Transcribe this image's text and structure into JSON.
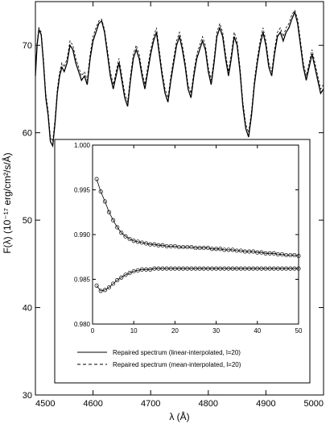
{
  "chart_data": [
    {
      "type": "line",
      "xlabel": "λ (Å)",
      "ylabel": "F(λ) (10⁻¹⁷ erg/cm²/s/Å)",
      "xlim": [
        4500,
        5000
      ],
      "ylim": [
        30,
        75
      ],
      "x_ticks": [
        "4500",
        "4600",
        "4700",
        "4800",
        "4900",
        "5000"
      ],
      "y_ticks": [
        "30",
        "40",
        "50",
        "60",
        "70"
      ],
      "grid": false,
      "series": [
        {
          "name": "Repaired spectrum (linear-interpolated, l=20)",
          "style": "solid",
          "x": [
            4500,
            4503,
            4506,
            4510,
            4514,
            4518,
            4522,
            4526,
            4530,
            4534,
            4538,
            4542,
            4546,
            4550,
            4555,
            4560,
            4565,
            4570,
            4575,
            4580,
            4585,
            4590,
            4595,
            4600,
            4605,
            4610,
            4615,
            4620,
            4625,
            4630,
            4635,
            4640,
            4645,
            4650,
            4655,
            4660,
            4665,
            4670,
            4675,
            4680,
            4685,
            4690,
            4695,
            4700,
            4705,
            4710,
            4715,
            4720,
            4725,
            4730,
            4735,
            4740,
            4745,
            4750,
            4755,
            4760,
            4765,
            4770,
            4775,
            4780,
            4785,
            4790,
            4795,
            4800,
            4805,
            4810,
            4815,
            4820,
            4825,
            4830,
            4835,
            4840,
            4845,
            4850,
            4855,
            4860,
            4865,
            4870,
            4875,
            4880,
            4885,
            4890,
            4895,
            4900,
            4905,
            4910,
            4915,
            4920,
            4925,
            4930,
            4935,
            4940,
            4945,
            4950,
            4955,
            4960,
            4965,
            4970,
            4975,
            4980,
            4985,
            4990,
            4995,
            5000
          ],
          "values": [
            66.5,
            70.0,
            71.8,
            71.2,
            68.0,
            64.0,
            62.0,
            59.0,
            58.5,
            61.0,
            64.5,
            66.5,
            67.5,
            67.0,
            68.0,
            70.0,
            69.5,
            68.0,
            67.0,
            66.0,
            66.5,
            65.5,
            68.5,
            70.5,
            71.5,
            72.5,
            72.8,
            71.5,
            69.0,
            66.5,
            65.0,
            66.5,
            68.0,
            66.0,
            64.0,
            63.0,
            66.0,
            68.5,
            69.5,
            68.5,
            66.5,
            65.0,
            67.0,
            69.0,
            70.5,
            71.5,
            69.0,
            66.5,
            64.5,
            63.5,
            66.0,
            68.0,
            70.0,
            71.0,
            69.5,
            67.5,
            65.0,
            64.0,
            66.5,
            68.5,
            69.5,
            70.5,
            69.5,
            67.0,
            65.5,
            68.0,
            71.0,
            72.0,
            71.0,
            68.5,
            66.5,
            68.5,
            71.0,
            70.0,
            67.0,
            63.0,
            60.5,
            59.5,
            62.0,
            65.5,
            68.0,
            70.0,
            71.5,
            70.0,
            67.5,
            66.5,
            69.0,
            71.0,
            71.5,
            70.5,
            71.5,
            72.0,
            73.0,
            73.8,
            72.5,
            70.0,
            67.5,
            66.0,
            67.5,
            69.0,
            67.5,
            66.0,
            64.5,
            65.0
          ]
        },
        {
          "name": "Repaired spectrum (mean-interpolated, l=20)",
          "style": "dashed",
          "x": [
            4500,
            4503,
            4506,
            4510,
            4514,
            4518,
            4522,
            4526,
            4530,
            4534,
            4538,
            4542,
            4546,
            4550,
            4555,
            4560,
            4565,
            4570,
            4575,
            4580,
            4585,
            4590,
            4595,
            4600,
            4605,
            4610,
            4615,
            4620,
            4625,
            4630,
            4635,
            4640,
            4645,
            4650,
            4655,
            4660,
            4665,
            4670,
            4675,
            4680,
            4685,
            4690,
            4695,
            4700,
            4705,
            4710,
            4715,
            4720,
            4725,
            4730,
            4735,
            4740,
            4745,
            4750,
            4755,
            4760,
            4765,
            4770,
            4775,
            4780,
            4785,
            4790,
            4795,
            4800,
            4805,
            4810,
            4815,
            4820,
            4825,
            4830,
            4835,
            4840,
            4845,
            4850,
            4855,
            4860,
            4865,
            4870,
            4875,
            4880,
            4885,
            4890,
            4895,
            4900,
            4905,
            4910,
            4915,
            4920,
            4925,
            4930,
            4935,
            4940,
            4945,
            4950,
            4955,
            4960,
            4965,
            4970,
            4975,
            4980,
            4985,
            4990,
            4995,
            5000
          ],
          "values": [
            66.8,
            70.3,
            72.0,
            71.5,
            68.5,
            64.5,
            62.5,
            59.5,
            59.0,
            61.5,
            65.0,
            67.0,
            68.0,
            67.5,
            68.5,
            70.5,
            70.0,
            68.5,
            67.5,
            66.5,
            67.0,
            66.0,
            69.0,
            71.0,
            72.0,
            72.8,
            73.0,
            71.8,
            69.5,
            67.0,
            65.5,
            67.0,
            68.5,
            66.5,
            64.5,
            63.5,
            66.5,
            69.0,
            70.0,
            69.0,
            67.0,
            65.5,
            67.5,
            69.5,
            71.0,
            72.0,
            69.5,
            67.0,
            65.0,
            64.0,
            66.5,
            68.5,
            70.5,
            71.5,
            70.0,
            68.0,
            65.5,
            64.5,
            67.0,
            69.0,
            70.0,
            71.0,
            70.0,
            67.5,
            66.0,
            68.5,
            71.5,
            72.5,
            71.5,
            69.0,
            67.0,
            69.0,
            71.5,
            70.5,
            67.5,
            63.5,
            61.0,
            60.0,
            62.5,
            66.0,
            68.5,
            70.5,
            72.0,
            70.5,
            68.0,
            67.0,
            69.5,
            71.5,
            72.0,
            71.0,
            72.0,
            72.5,
            73.5,
            74.0,
            73.0,
            70.5,
            68.0,
            66.5,
            68.0,
            69.5,
            68.0,
            66.5,
            65.0,
            65.5
          ]
        }
      ],
      "legend_position": "bottom"
    },
    {
      "type": "scatter",
      "xlim": [
        0,
        50
      ],
      "ylim": [
        0.98,
        1.0
      ],
      "x_ticks": [
        "0",
        "10",
        "20",
        "30",
        "40",
        "50"
      ],
      "y_ticks": [
        "0.980",
        "0.985",
        "0.990",
        "0.995",
        "1.000"
      ],
      "grid": false,
      "series": [
        {
          "x": [
            1,
            2,
            3,
            4,
            5,
            6,
            7,
            8,
            9,
            10,
            11,
            12,
            13,
            14,
            15,
            16,
            17,
            18,
            19,
            20,
            21,
            22,
            23,
            24,
            25,
            26,
            27,
            28,
            29,
            30,
            31,
            32,
            33,
            34,
            35,
            36,
            37,
            38,
            39,
            40,
            41,
            42,
            43,
            44,
            45,
            46,
            47,
            48,
            49,
            50
          ],
          "values": [
            0.9962,
            0.9948,
            0.9937,
            0.9925,
            0.9916,
            0.9908,
            0.9902,
            0.9898,
            0.9895,
            0.9893,
            0.9892,
            0.9891,
            0.989,
            0.9889,
            0.9889,
            0.9888,
            0.9888,
            0.9887,
            0.9887,
            0.9887,
            0.9886,
            0.9886,
            0.9886,
            0.9886,
            0.9885,
            0.9885,
            0.9885,
            0.9885,
            0.9884,
            0.9884,
            0.9884,
            0.9883,
            0.9883,
            0.9883,
            0.9882,
            0.9882,
            0.9881,
            0.9881,
            0.9881,
            0.988,
            0.988,
            0.9879,
            0.9879,
            0.9879,
            0.9878,
            0.9878,
            0.9877,
            0.9877,
            0.9877,
            0.9876
          ]
        },
        {
          "x": [
            1,
            2,
            3,
            4,
            5,
            6,
            7,
            8,
            9,
            10,
            11,
            12,
            13,
            14,
            15,
            16,
            17,
            18,
            19,
            20,
            21,
            22,
            23,
            24,
            25,
            26,
            27,
            28,
            29,
            30,
            31,
            32,
            33,
            34,
            35,
            36,
            37,
            38,
            39,
            40,
            41,
            42,
            43,
            44,
            45,
            46,
            47,
            48,
            49,
            50
          ],
          "values": [
            0.9843,
            0.9837,
            0.9838,
            0.9841,
            0.9845,
            0.9849,
            0.9852,
            0.9855,
            0.9857,
            0.9859,
            0.986,
            0.9861,
            0.9861,
            0.9861,
            0.9862,
            0.9862,
            0.9862,
            0.9862,
            0.9862,
            0.9862,
            0.9862,
            0.9862,
            0.9862,
            0.9862,
            0.9862,
            0.9862,
            0.9862,
            0.9862,
            0.9862,
            0.9862,
            0.9862,
            0.9862,
            0.9862,
            0.9862,
            0.9862,
            0.9862,
            0.9862,
            0.9862,
            0.9862,
            0.9862,
            0.9862,
            0.9862,
            0.9862,
            0.9862,
            0.9862,
            0.9862,
            0.9862,
            0.9862,
            0.9862,
            0.9862
          ]
        }
      ]
    }
  ]
}
